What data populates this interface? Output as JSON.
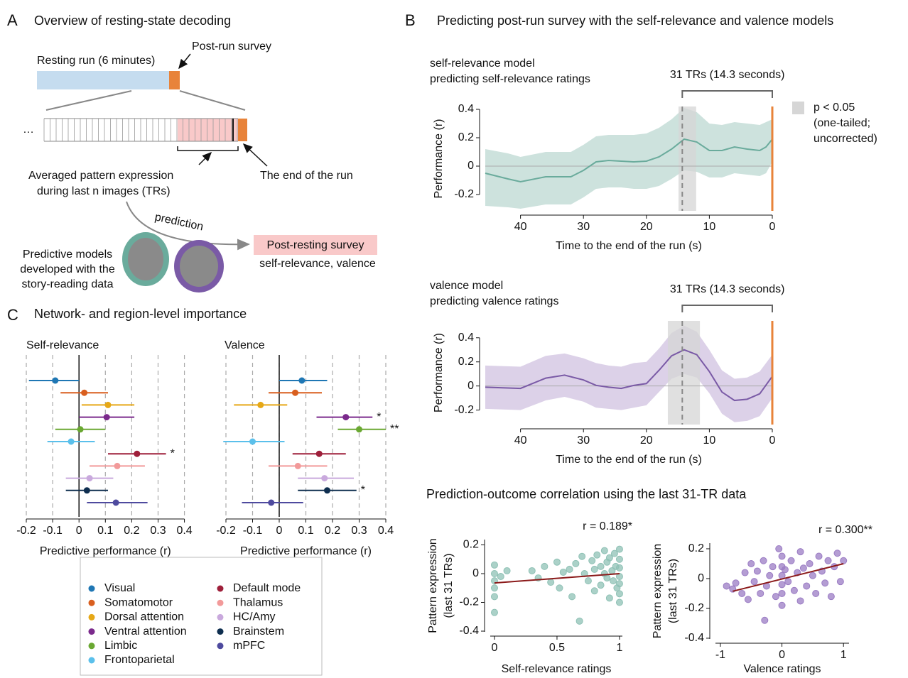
{
  "panels": {
    "A": {
      "label": "A",
      "title": "Overview of resting-state decoding"
    },
    "B": {
      "label": "B",
      "title": "Predicting post-run survey with the self-relevance and valence models",
      "subtitle": "Prediction-outcome correlation using the last 31-TR data"
    },
    "C": {
      "label": "C",
      "title": "Network- and region-level importance"
    }
  },
  "diagram": {
    "resting_run": "Resting run (6 minutes)",
    "post_run_survey": "Post-run survey",
    "ellipsis": "…",
    "averaged": [
      "Averaged pattern expression",
      "during last n images (TRs)"
    ],
    "end_of_run": "The end of the run",
    "prediction": "prediction",
    "models": [
      "Predictive models",
      "developed with the",
      "story-reading data"
    ],
    "post_resting_survey": "Post-resting survey",
    "ratings": "self-relevance, valence"
  },
  "chart_data": [
    {
      "type": "line",
      "title": [
        "self-relevance model",
        "predicting self-relevance ratings"
      ],
      "xlabel": "Time to the end of the run (s)",
      "ylabel": "Performance (r)",
      "x": [
        45.6,
        42,
        40,
        36,
        32,
        30,
        28,
        26,
        24,
        22,
        20,
        18,
        16,
        14,
        12,
        10,
        8,
        6,
        4,
        2,
        1,
        0
      ],
      "values": [
        -0.05,
        -0.09,
        -0.11,
        -0.075,
        -0.075,
        -0.03,
        0.03,
        0.04,
        0.035,
        0.03,
        0.035,
        0.065,
        0.12,
        0.19,
        0.17,
        0.11,
        0.11,
        0.135,
        0.12,
        0.11,
        0.135,
        0.19
      ],
      "upper": [
        0.12,
        0.09,
        0.065,
        0.1,
        0.1,
        0.15,
        0.21,
        0.22,
        0.22,
        0.22,
        0.23,
        0.27,
        0.33,
        0.41,
        0.38,
        0.3,
        0.29,
        0.31,
        0.3,
        0.29,
        0.31,
        0.33
      ],
      "lower": [
        -0.28,
        -0.29,
        -0.3,
        -0.27,
        -0.27,
        -0.22,
        -0.16,
        -0.15,
        -0.15,
        -0.16,
        -0.16,
        -0.14,
        -0.09,
        -0.03,
        -0.04,
        -0.08,
        -0.08,
        -0.05,
        -0.06,
        -0.07,
        -0.05,
        0.03
      ],
      "color": "#6aab9c",
      "band_color": "#c8dfd9",
      "xlim": [
        45.6,
        0
      ],
      "ylim": [
        -0.315,
        0.42
      ],
      "xticks": [
        40,
        30,
        20,
        10,
        0
      ],
      "yticks": [
        -0.2,
        0,
        0.2,
        0.4
      ],
      "significant_region": [
        14.9,
        12.1
      ],
      "run_end": 0,
      "bracket": {
        "label": "31 TRs (14.3 seconds)",
        "from": 14.3,
        "to": 0
      },
      "sig_legend": [
        "p < 0.05",
        "(one-tailed;",
        "uncorrected)"
      ]
    },
    {
      "type": "line",
      "title": [
        "valence model",
        "predicting valence ratings"
      ],
      "xlabel": "Time to the end of the run (s)",
      "ylabel": "Performance (r)",
      "x": [
        45.6,
        40,
        36,
        33,
        30,
        28,
        26,
        24,
        22,
        20,
        18,
        16,
        14,
        12,
        10,
        8,
        6,
        4,
        2,
        0
      ],
      "values": [
        -0.01,
        -0.02,
        0.065,
        0.09,
        0.05,
        0.005,
        -0.01,
        -0.02,
        0.005,
        0.02,
        0.13,
        0.25,
        0.3,
        0.26,
        0.12,
        -0.05,
        -0.12,
        -0.11,
        -0.065,
        0.08
      ],
      "upper": [
        0.17,
        0.16,
        0.25,
        0.27,
        0.23,
        0.19,
        0.17,
        0.16,
        0.19,
        0.2,
        0.31,
        0.44,
        0.5,
        0.45,
        0.3,
        0.13,
        0.06,
        0.07,
        0.12,
        0.26
      ],
      "lower": [
        -0.19,
        -0.2,
        -0.12,
        -0.09,
        -0.13,
        -0.18,
        -0.19,
        -0.2,
        -0.18,
        -0.16,
        -0.05,
        0.06,
        0.1,
        0.07,
        -0.06,
        -0.23,
        -0.3,
        -0.29,
        -0.25,
        -0.1
      ],
      "color": "#7a5aa6",
      "band_color": "#d8cce6",
      "xlim": [
        45.6,
        0
      ],
      "ylim": [
        -0.32,
        0.54
      ],
      "xticks": [
        40,
        30,
        20,
        10,
        0
      ],
      "yticks": [
        -0.2,
        0,
        0.2,
        0.4
      ],
      "significant_region": [
        16.6,
        11.5
      ],
      "run_end": 0,
      "bracket": {
        "label": "31 TRs (14.3 seconds)",
        "from": 14.3,
        "to": 0
      }
    },
    {
      "type": "scatter",
      "annotation": "r = 0.189*",
      "xlabel": "Self-relevance ratings",
      "ylabel": [
        "Pattern expression",
        "(last 31 TRs)"
      ],
      "x": [
        0,
        0,
        0,
        0,
        0,
        0,
        0.1,
        0.05,
        0.3,
        0.35,
        0.4,
        0.45,
        0.5,
        0.52,
        0.55,
        0.6,
        0.62,
        0.65,
        0.68,
        0.7,
        0.72,
        0.75,
        0.78,
        0.8,
        0.8,
        0.82,
        0.85,
        0.85,
        0.88,
        0.88,
        0.9,
        0.9,
        0.92,
        0.92,
        0.94,
        0.95,
        0.96,
        0.97,
        0.98,
        1,
        1,
        1,
        1,
        1,
        1,
        1
      ],
      "values": [
        0.06,
        0,
        -0.05,
        -0.1,
        -0.16,
        -0.27,
        0.02,
        -0.02,
        0.02,
        -0.03,
        0.05,
        -0.06,
        0.08,
        -0.1,
        0.01,
        0.03,
        -0.16,
        0.07,
        -0.33,
        0.12,
        0,
        -0.05,
        0.09,
        -0.12,
        0.03,
        0.13,
        0.05,
        -0.08,
        0.16,
        0,
        -0.03,
        0.08,
        0.11,
        -0.17,
        0.02,
        -0.05,
        0.14,
        0.05,
        -0.1,
        0.17,
        0.1,
        0.04,
        -0.02,
        -0.07,
        -0.14,
        -0.2
      ],
      "color": "#8fc1b5",
      "fit": {
        "x": [
          0,
          1
        ],
        "y": [
          -0.065,
          0
        ],
        "color": "#8b1a1a"
      },
      "xlim": [
        -0.034,
        1.023
      ],
      "ylim": [
        -0.405,
        0.237
      ],
      "xticks": [
        0,
        0.5,
        1
      ],
      "yticks": [
        -0.4,
        -0.2,
        0,
        0.2
      ]
    },
    {
      "type": "scatter",
      "annotation": "r = 0.300**",
      "xlabel": "Valence ratings",
      "ylabel": [
        "Pattern expression",
        "(last 31 TRs)"
      ],
      "x": [
        -0.9,
        -0.8,
        -0.75,
        -0.65,
        -0.6,
        -0.55,
        -0.5,
        -0.45,
        -0.4,
        -0.35,
        -0.3,
        -0.28,
        -0.25,
        -0.2,
        -0.15,
        -0.1,
        -0.05,
        0,
        0,
        0,
        0,
        0,
        0,
        0.05,
        0.1,
        0.15,
        0.2,
        0.25,
        0.3,
        0.3,
        0.35,
        0.4,
        0.45,
        0.5,
        0.55,
        0.6,
        0.65,
        0.7,
        0.75,
        0.8,
        0.85,
        0.9,
        0.95,
        1
      ],
      "values": [
        -0.05,
        -0.07,
        -0.03,
        -0.1,
        0.04,
        -0.14,
        0.1,
        -0.02,
        0.05,
        -0.1,
        0.12,
        -0.28,
        -0.05,
        0.02,
        0.08,
        -0.12,
        0.2,
        0.15,
        0.08,
        0.02,
        -0.04,
        -0.1,
        -0.18,
        0.06,
        -0.02,
        0.12,
        -0.08,
        0.04,
        0.18,
        -0.15,
        0.07,
        -0.05,
        0.1,
        0.02,
        -0.1,
        0.15,
        0.05,
        -0.03,
        0.12,
        -0.12,
        0.08,
        0.17,
        -0.02,
        0.12
      ],
      "color": "#9b7cc4",
      "fit": {
        "x": [
          -0.8,
          1
        ],
        "y": [
          -0.085,
          0.1
        ],
        "color": "#8b1a1a"
      },
      "xlim": [
        -1.08,
        1.09
      ],
      "ylim": [
        -0.405,
        0.238
      ],
      "xticks": [
        -1,
        0,
        1
      ],
      "yticks": [
        -0.4,
        -0.2,
        0,
        0.2
      ]
    },
    {
      "type": "forest",
      "xlabel": "Predictive performance (r)",
      "categories": [
        "Visual",
        "Somatomotor",
        "Dorsal attention",
        "Ventral attention",
        "Limbic",
        "Frontoparietal",
        "Default mode",
        "Thalamus",
        "HC/Amy",
        "Brainstem",
        "mPFC"
      ],
      "colors": [
        "#1f77b4",
        "#d95f1f",
        "#e6a817",
        "#7b2a8c",
        "#6aa832",
        "#5bc0eb",
        "#9e1f3a",
        "#f29a9a",
        "#c9a9dd",
        "#0e2e4f",
        "#4e4a9e"
      ],
      "xlim": [
        -0.22,
        0.42
      ],
      "xticks": [
        -0.2,
        -0.1,
        0,
        0.1,
        0.2,
        0.3,
        0.4
      ],
      "series": [
        {
          "name": "Self-relevance",
          "values": [
            -0.09,
            0.02,
            0.11,
            0.105,
            0.005,
            -0.03,
            0.22,
            0.145,
            0.04,
            0.03,
            0.14
          ],
          "lower": [
            -0.19,
            -0.07,
            0.01,
            0,
            -0.09,
            -0.12,
            0.11,
            0.04,
            -0.05,
            -0.05,
            0.03
          ],
          "upper": [
            0,
            0.11,
            0.21,
            0.21,
            0.1,
            0.06,
            0.33,
            0.25,
            0.13,
            0.11,
            0.26
          ],
          "annotations": [
            {
              "row": 6,
              "text": "*"
            }
          ]
        },
        {
          "name": "Valence",
          "values": [
            0.085,
            0.06,
            -0.07,
            0.25,
            0.3,
            -0.1,
            0.15,
            0.07,
            0.17,
            0.18,
            -0.03
          ],
          "lower": [
            0,
            -0.04,
            -0.17,
            0.14,
            0.22,
            -0.21,
            0.05,
            -0.04,
            0.07,
            0.07,
            -0.14
          ],
          "upper": [
            0.18,
            0.16,
            0.03,
            0.35,
            0.4,
            0.02,
            0.25,
            0.18,
            0.28,
            0.29,
            0.09
          ],
          "annotations": [
            {
              "row": 3,
              "text": "*"
            },
            {
              "row": 4,
              "text": "**"
            },
            {
              "row": 9,
              "text": "*"
            }
          ]
        }
      ]
    }
  ]
}
